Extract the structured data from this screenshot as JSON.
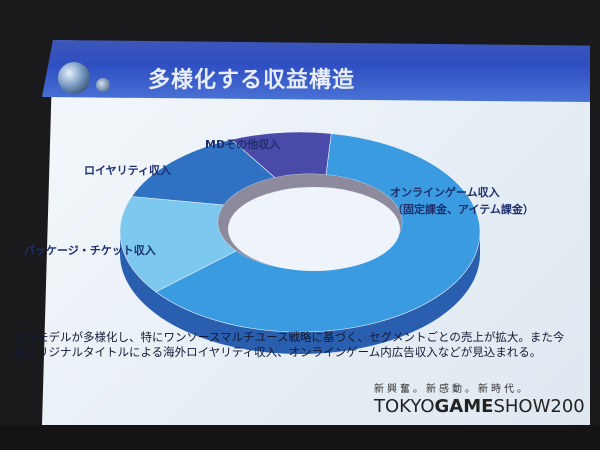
{
  "slide": {
    "title": "多様化する収益構造",
    "body": "収益モデルが多様化し、特にワンソースマルチユース戦略に基づく、セグメントごとの売上が拡大。また今後オリジナルタイトルによる海外ロイヤリティ収入、オンラインゲーム内広告収入などが見込まれる。",
    "tagline": "新興奮。新感動。新時代。",
    "brand": {
      "part1": "TOKYO",
      "part2": "GAME",
      "part3": "SHOW200"
    }
  },
  "chart_data": {
    "type": "pie",
    "style": "3d-donut",
    "categories": [
      "オンラインゲーム収入（固定課金、アイテム課金）",
      "パッケージ・チケット収入",
      "ロイヤリティ収入",
      "MDその他収入"
    ],
    "labels": [
      "オンラインゲーム収入",
      "（固定課金、アイテム課金）",
      "パッケージ・チケット収入",
      "ロイヤリティ収入",
      "MDその他収入"
    ],
    "values": [
      62,
      16,
      13,
      9
    ],
    "colors": [
      "#3a9be0",
      "#7cc8ee",
      "#2f72c4",
      "#4a4aa8"
    ]
  }
}
